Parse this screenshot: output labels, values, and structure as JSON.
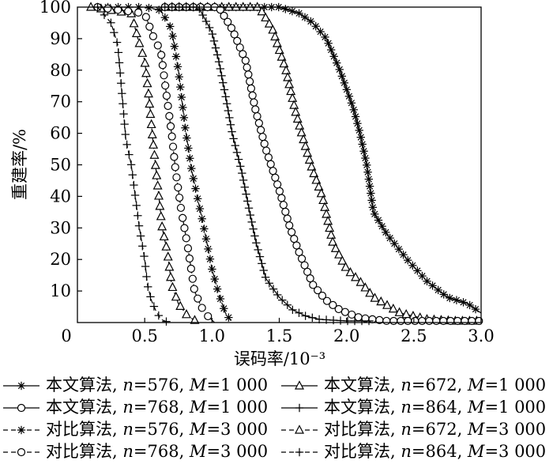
{
  "chart_data": {
    "type": "line",
    "xlabel": "误码率/10⁻³",
    "ylabel": "重建率/%",
    "xlim": [
      0.0,
      3.0
    ],
    "ylim": [
      0,
      100
    ],
    "x_ticks": [
      "0",
      "0.5",
      "1.0",
      "1.5",
      "2.0",
      "2.5",
      "3.0"
    ],
    "y_ticks": [
      "10",
      "20",
      "30",
      "40",
      "50",
      "60",
      "70",
      "80",
      "90",
      "100"
    ],
    "grid": false,
    "legend_position": "bottom",
    "series": [
      {
        "name": "本文算法, n=576, M=1 000",
        "name_parts": [
          "本文算法, ",
          "n",
          "=576, ",
          "M",
          "=1 000"
        ],
        "line": "solid",
        "marker": "star",
        "x": [
          0.65,
          1.3,
          1.5,
          1.65,
          1.75,
          1.85,
          1.95,
          2.05,
          2.1,
          2.15,
          2.2,
          2.3,
          2.45,
          2.6,
          2.75,
          2.9,
          3.0
        ],
        "y": [
          100,
          100,
          100,
          98,
          95,
          90,
          80,
          68,
          60,
          50,
          35,
          28,
          20,
          13,
          8,
          6,
          3
        ]
      },
      {
        "name": "本文算法, n=672, M=1 000",
        "name_parts": [
          "本文算法, ",
          "n",
          "=672, ",
          "M",
          "=1 000"
        ],
        "line": "solid",
        "marker": "triangle",
        "x": [
          0.65,
          1.35,
          1.45,
          1.55,
          1.62,
          1.7,
          1.75,
          1.82,
          1.9,
          2.0,
          2.1,
          2.2,
          2.4,
          2.6,
          2.8,
          3.0
        ],
        "y": [
          100,
          100,
          93,
          80,
          67,
          55,
          48,
          40,
          25,
          17,
          13,
          8,
          3,
          1,
          0.5,
          0.5
        ]
      },
      {
        "name": "本文算法, n=768, M=1 000",
        "name_parts": [
          "本文算法, ",
          "n",
          "=768, ",
          "M",
          "=1 000"
        ],
        "line": "solid",
        "marker": "circle",
        "x": [
          0.65,
          1.05,
          1.15,
          1.25,
          1.32,
          1.4,
          1.5,
          1.58,
          1.65,
          1.75,
          1.85,
          1.95,
          2.1,
          2.3,
          2.6,
          3.0
        ],
        "y": [
          100,
          100,
          93,
          83,
          68,
          55,
          42,
          30,
          22,
          12,
          7,
          4,
          1.5,
          0.5,
          0.5,
          0.5
        ]
      },
      {
        "name": "本文算法, n=864, M=1 000",
        "name_parts": [
          "本文算法, ",
          "n",
          "=864, ",
          "M",
          "=1 000"
        ],
        "line": "solid",
        "marker": "plus",
        "x": [
          0.65,
          0.9,
          1.0,
          1.05,
          1.1,
          1.15,
          1.22,
          1.28,
          1.33,
          1.4,
          1.5,
          1.6,
          1.7,
          1.8,
          2.0,
          2.2
        ],
        "y": [
          100,
          100,
          92,
          83,
          72,
          60,
          48,
          35,
          25,
          14,
          8,
          4,
          2,
          1,
          0.5,
          0.5
        ]
      },
      {
        "name": "对比算法, n=576, M=3 000",
        "name_parts": [
          "对比算法, ",
          "n",
          "=576, ",
          "M",
          "=3 000"
        ],
        "line": "dashed",
        "marker": "star",
        "x": [
          0.15,
          0.5,
          0.62,
          0.7,
          0.75,
          0.8,
          0.85,
          0.9,
          0.95,
          1.0,
          1.05,
          1.1,
          1.15
        ],
        "y": [
          100,
          100,
          99,
          93,
          80,
          62,
          48,
          38,
          28,
          17,
          9,
          3,
          0
        ]
      },
      {
        "name": "对比算法, n=672, M=3 000",
        "name_parts": [
          "对比算法, ",
          "n",
          "=672, ",
          "M",
          "=3 000"
        ],
        "line": "dashed",
        "marker": "triangle",
        "x": [
          0.1,
          0.4,
          0.45,
          0.5,
          0.53,
          0.56,
          0.6,
          0.63,
          0.67,
          0.7,
          0.75,
          0.82,
          0.9
        ],
        "y": [
          100,
          98,
          90,
          83,
          72,
          58,
          42,
          30,
          22,
          12,
          6,
          2,
          0
        ]
      },
      {
        "name": "对比算法, n=768, M=3 000",
        "name_parts": [
          "对比算法, ",
          "n",
          "=768, ",
          "M",
          "=3 000"
        ],
        "line": "dashed",
        "marker": "circle",
        "x": [
          0.15,
          0.5,
          0.56,
          0.62,
          0.65,
          0.7,
          0.73,
          0.77,
          0.82,
          0.87,
          0.92,
          0.97,
          1.02
        ],
        "y": [
          100,
          98,
          91,
          86,
          76,
          60,
          48,
          36,
          24,
          10,
          5,
          2,
          0
        ]
      },
      {
        "name": "对比算法, n=864, M=3 000",
        "name_parts": [
          "对比算法, ",
          "n",
          "=864, ",
          "M",
          "=3 000"
        ],
        "line": "dashed",
        "marker": "plus",
        "x": [
          0.15,
          0.25,
          0.3,
          0.33,
          0.36,
          0.4,
          0.43,
          0.46,
          0.5,
          0.52,
          0.55,
          0.58,
          0.62,
          0.68
        ],
        "y": [
          100,
          95,
          88,
          73,
          58,
          50,
          40,
          30,
          20,
          12,
          7,
          4,
          1,
          0
        ]
      }
    ]
  }
}
